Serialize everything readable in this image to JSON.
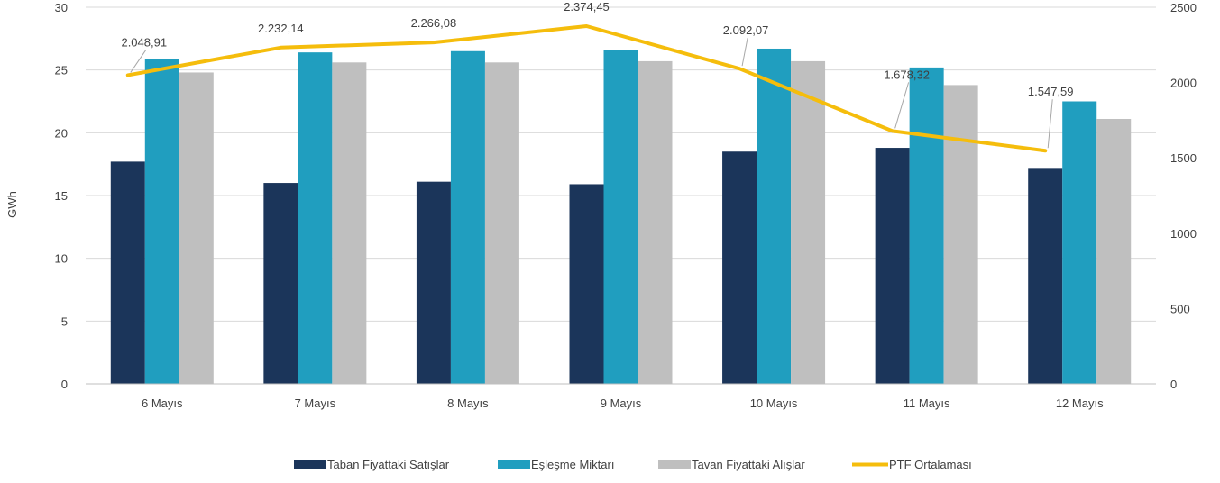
{
  "chart_data": {
    "type": "bar",
    "categories": [
      "6 Mayıs",
      "7 Mayıs",
      "8 Mayıs",
      "9 Mayıs",
      "10 Mayıs",
      "11 Mayıs",
      "12 Mayıs"
    ],
    "series": [
      {
        "name": "Taban Fiyattaki Satışlar",
        "kind": "bar",
        "axis": "left",
        "color": "#1b355a",
        "values": [
          17.7,
          16.0,
          16.1,
          15.9,
          18.5,
          18.8,
          17.2
        ]
      },
      {
        "name": "Eşleşme Miktarı",
        "kind": "bar",
        "axis": "left",
        "color": "#209ebf",
        "values": [
          25.9,
          26.4,
          26.5,
          26.6,
          26.7,
          25.2,
          22.5
        ]
      },
      {
        "name": "Tavan Fiyattaki Alışlar",
        "kind": "bar",
        "axis": "left",
        "color": "#bfbfbf",
        "values": [
          24.8,
          25.6,
          25.6,
          25.7,
          25.7,
          23.8,
          21.1
        ]
      },
      {
        "name": "PTF Ortalaması",
        "kind": "line",
        "axis": "right",
        "color": "#f5bd0c",
        "values": [
          2048.91,
          2232.14,
          2266.08,
          2374.45,
          2092.07,
          1678.32,
          1547.59
        ]
      }
    ],
    "line_labels": [
      "2.048,91",
      "2.232,14",
      "2.266,08",
      "2.374,45",
      "2.092,07",
      "1.678,32",
      "1.547,59"
    ],
    "ylabel": "GWh",
    "ylim": [
      0,
      30
    ],
    "yticks": [
      "0",
      "5",
      "10",
      "15",
      "20",
      "25",
      "30"
    ],
    "y2lim": [
      0,
      2500
    ],
    "y2ticks": [
      "0",
      "500",
      "1000",
      "1500",
      "2000",
      "2500"
    ],
    "grid": true,
    "legend_position": "bottom"
  }
}
